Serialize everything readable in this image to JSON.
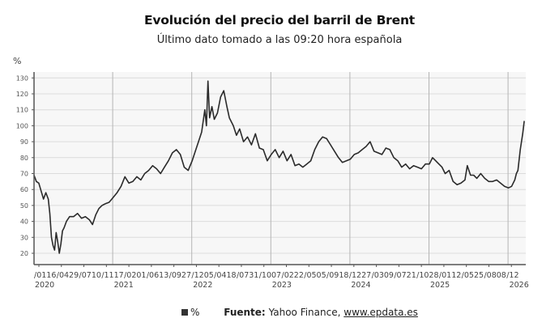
{
  "header": {
    "title": "Evolución del precio del barril de Brent",
    "subtitle": "Último dato tomado a las 09:20 hora española",
    "y_unit": "%"
  },
  "footer": {
    "legend_label": "%",
    "source_label": "Fuente:",
    "source_text": "Yahoo Finance,",
    "source_link": "www.epdata.es"
  },
  "colors": {
    "line": "#2b2b2b",
    "plot_bg": "#f7f7f7",
    "grid": "#dcdcdc",
    "year_line": "#b5b5b5",
    "axis": "#555555"
  },
  "chart_data": {
    "type": "line",
    "title": "Evolución del precio del barril de Brent",
    "subtitle": "Último dato tomado a las 09:20 hora española",
    "xlabel": "",
    "ylabel": "%",
    "ylim": [
      17,
      132
    ],
    "yticks": [
      20,
      30,
      40,
      50,
      60,
      70,
      80,
      90,
      100,
      110,
      120,
      130
    ],
    "grid": true,
    "legend_position": "bottom",
    "x_tick_labels": [
      "/0116",
      "/0429",
      "/0710",
      "/1117",
      "/0201",
      "/0613",
      "/0927",
      "/1205",
      "/0418",
      "/0731",
      "/1007",
      "/0222",
      "/0505",
      "/0918",
      "/1227",
      "/0309",
      "/0721",
      "/1028",
      "/0112",
      "/0525",
      "/0808",
      "/12"
    ],
    "year_labels": [
      "2020",
      "2021",
      "2022",
      "2023",
      "2024",
      "2025",
      "2026"
    ],
    "series": [
      {
        "name": "%",
        "x": [
          2020.0,
          2020.03,
          2020.06,
          2020.09,
          2020.12,
          2020.15,
          2020.18,
          2020.2,
          2020.22,
          2020.24,
          2020.26,
          2020.28,
          2020.3,
          2020.32,
          2020.34,
          2020.36,
          2020.38,
          2020.41,
          2020.45,
          2020.5,
          2020.55,
          2020.6,
          2020.65,
          2020.7,
          2020.74,
          2020.78,
          2020.82,
          2020.86,
          2020.9,
          2020.95,
          2021.0,
          2021.05,
          2021.1,
          2021.15,
          2021.2,
          2021.25,
          2021.3,
          2021.35,
          2021.4,
          2021.45,
          2021.5,
          2021.55,
          2021.6,
          2021.65,
          2021.7,
          2021.75,
          2021.8,
          2021.85,
          2021.9,
          2021.95,
          2022.0,
          2022.04,
          2022.08,
          2022.12,
          2022.16,
          2022.18,
          2022.2,
          2022.22,
          2022.25,
          2022.28,
          2022.32,
          2022.36,
          2022.4,
          2022.44,
          2022.47,
          2022.52,
          2022.56,
          2022.6,
          2022.65,
          2022.7,
          2022.75,
          2022.8,
          2022.85,
          2022.9,
          2022.95,
          2023.0,
          2023.05,
          2023.1,
          2023.15,
          2023.2,
          2023.25,
          2023.3,
          2023.35,
          2023.4,
          2023.45,
          2023.5,
          2023.55,
          2023.6,
          2023.65,
          2023.7,
          2023.75,
          2023.8,
          2023.85,
          2023.9,
          2023.95,
          2024.0,
          2024.05,
          2024.1,
          2024.15,
          2024.2,
          2024.25,
          2024.3,
          2024.35,
          2024.4,
          2024.45,
          2024.5,
          2024.55,
          2024.6,
          2024.65,
          2024.7,
          2024.75,
          2024.8,
          2024.85,
          2024.9,
          2024.95,
          2025.0,
          2025.04,
          2025.08,
          2025.12,
          2025.16,
          2025.2,
          2025.25,
          2025.3,
          2025.35,
          2025.4,
          2025.45,
          2025.48,
          2025.52,
          2025.56,
          2025.6,
          2025.65,
          2025.7,
          2025.75,
          2025.8,
          2025.85,
          2025.9,
          2025.95,
          2026.0,
          2026.04,
          2026.08,
          2026.1,
          2026.12,
          2026.15,
          2026.18,
          2026.2
        ],
        "values": [
          69,
          65,
          64,
          59,
          54,
          58,
          54,
          45,
          30,
          25,
          22,
          33,
          27,
          20,
          26,
          34,
          36,
          40,
          43,
          43,
          45,
          42,
          43,
          41,
          38,
          44,
          48,
          50,
          51,
          52,
          55,
          58,
          62,
          68,
          64,
          65,
          68,
          66,
          70,
          72,
          75,
          73,
          70,
          74,
          78,
          83,
          85,
          82,
          74,
          72,
          78,
          84,
          90,
          96,
          110,
          100,
          128,
          105,
          112,
          104,
          108,
          118,
          122,
          112,
          105,
          100,
          94,
          98,
          90,
          93,
          88,
          95,
          86,
          85,
          78,
          82,
          85,
          80,
          84,
          78,
          82,
          75,
          76,
          74,
          76,
          78,
          85,
          90,
          93,
          92,
          88,
          84,
          80,
          77,
          78,
          79,
          82,
          83,
          85,
          87,
          90,
          84,
          83,
          82,
          86,
          85,
          80,
          78,
          74,
          76,
          73,
          75,
          74,
          73,
          76,
          76,
          80,
          78,
          76,
          74,
          70,
          72,
          65,
          63,
          64,
          66,
          75,
          69,
          69,
          67,
          70,
          67,
          65,
          65,
          66,
          64,
          62,
          61,
          62,
          66,
          70,
          72,
          85,
          95,
          103
        ]
      }
    ]
  }
}
